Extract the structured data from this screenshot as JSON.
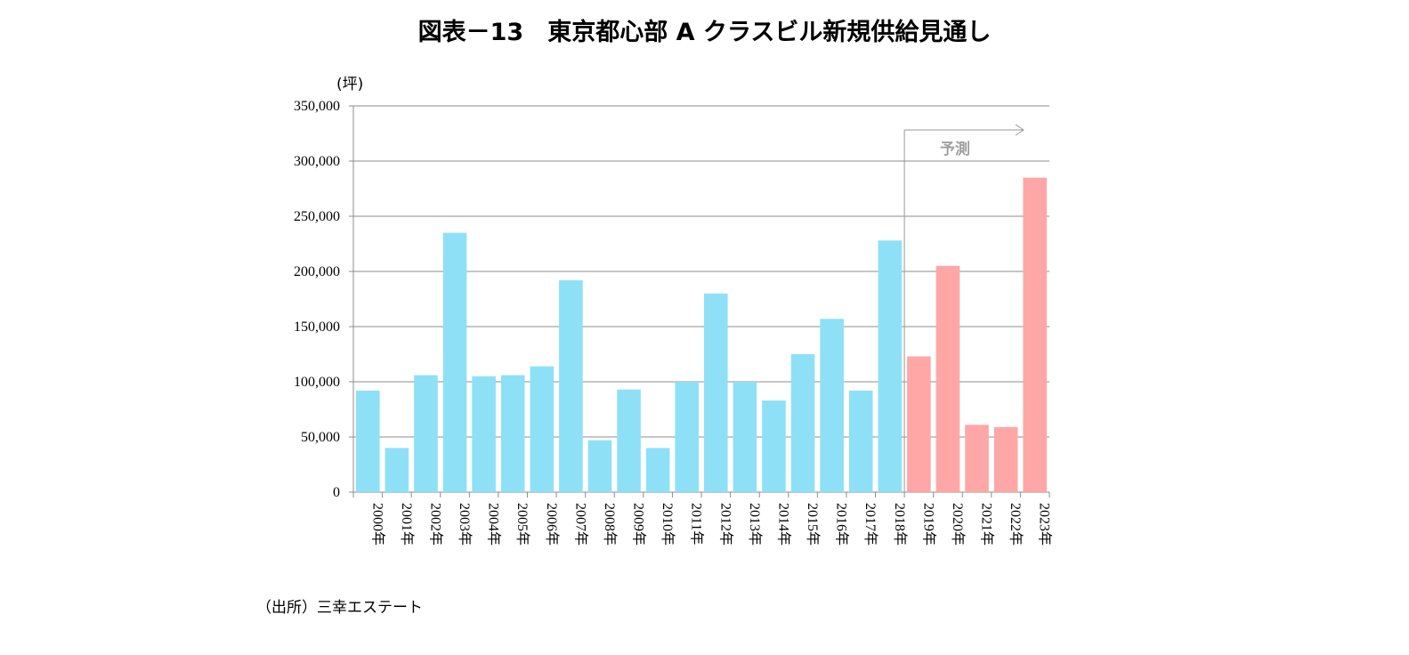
{
  "title": "図表－13　東京都心部 A クラスビル新規供給見通し",
  "source": "（出所）三幸エステート",
  "chart_data": {
    "type": "bar",
    "title": "図表－13　東京都心部 A クラスビル新規供給見通し",
    "unit_label": "(坪)",
    "ylim": [
      0,
      350000
    ],
    "yticks": [
      "0",
      "50,000",
      "100,000",
      "150,000",
      "200,000",
      "250,000",
      "300,000",
      "350,000"
    ],
    "grid": true,
    "categories": [
      "2000年",
      "2001年",
      "2002年",
      "2003年",
      "2004年",
      "2005年",
      "2006年",
      "2007年",
      "2008年",
      "2009年",
      "2010年",
      "2011年",
      "2012年",
      "2013年",
      "2014年",
      "2015年",
      "2016年",
      "2017年",
      "2018年",
      "2019年",
      "2020年",
      "2021年",
      "2022年",
      "2023年"
    ],
    "values": [
      92000,
      40000,
      106000,
      235000,
      105000,
      106000,
      114000,
      192000,
      47000,
      93000,
      40000,
      100000,
      180000,
      100000,
      83000,
      125000,
      157000,
      92000,
      228000,
      123000,
      205000,
      61000,
      59000,
      285000
    ],
    "forecast_label": "予測",
    "forecast_start": "2019年",
    "colors": {
      "actual": "#8EE0F6",
      "forecast": "#FFA6A6",
      "grid": "#8c8c8c"
    }
  }
}
